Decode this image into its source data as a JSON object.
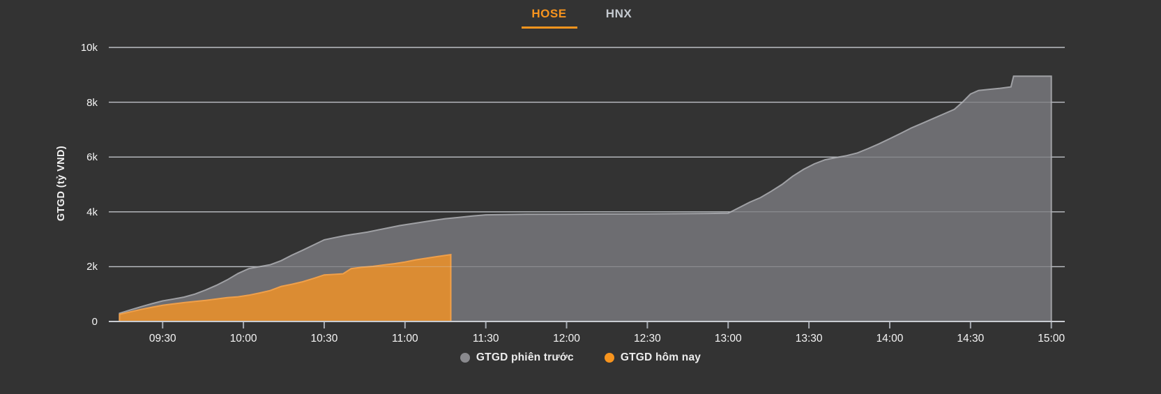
{
  "tabs": {
    "hose": "HOSE",
    "hnx": "HNX"
  },
  "colors": {
    "background": "#333333",
    "accent_orange": "#f7941e",
    "tab_inactive": "#c5cad0",
    "gridline": "#b5b8bd",
    "axis_line": "#c9ccd2",
    "tick_text": "#f5f5f5"
  },
  "chart_data": {
    "type": "area",
    "title": "",
    "ylabel": "GTGD (tỷ VND)",
    "xlabel": "",
    "ylim": [
      0,
      10000
    ],
    "grid": "horizontal",
    "legend_position": "bottom-center",
    "yticks": [
      {
        "v": 0,
        "label": "0"
      },
      {
        "v": 2000,
        "label": "2k"
      },
      {
        "v": 4000,
        "label": "4k"
      },
      {
        "v": 6000,
        "label": "6k"
      },
      {
        "v": 8000,
        "label": "8k"
      },
      {
        "v": 10000,
        "label": "10k"
      }
    ],
    "xticks": [
      {
        "t": "09:30",
        "label": "09:30"
      },
      {
        "t": "10:00",
        "label": "10:00"
      },
      {
        "t": "10:30",
        "label": "10:30"
      },
      {
        "t": "11:00",
        "label": "11:00"
      },
      {
        "t": "11:30",
        "label": "11:30"
      },
      {
        "t": "12:00",
        "label": "12:00"
      },
      {
        "t": "12:30",
        "label": "12:30"
      },
      {
        "t": "13:00",
        "label": "13:00"
      },
      {
        "t": "13:30",
        "label": "13:30"
      },
      {
        "t": "14:00",
        "label": "14:00"
      },
      {
        "t": "14:30",
        "label": "14:30"
      },
      {
        "t": "15:00",
        "label": "15:00"
      }
    ],
    "series": [
      {
        "name": "GTGD phiên trước",
        "fill": "#6d6d71",
        "stroke": "#a0a1a5",
        "points": [
          [
            "09:14",
            300
          ],
          [
            "09:18",
            420
          ],
          [
            "09:22",
            540
          ],
          [
            "09:26",
            650
          ],
          [
            "09:30",
            750
          ],
          [
            "09:34",
            820
          ],
          [
            "09:38",
            890
          ],
          [
            "09:42",
            1000
          ],
          [
            "09:46",
            1150
          ],
          [
            "09:50",
            1320
          ],
          [
            "09:54",
            1520
          ],
          [
            "09:58",
            1750
          ],
          [
            "10:02",
            1930
          ],
          [
            "10:06",
            2000
          ],
          [
            "10:10",
            2070
          ],
          [
            "10:14",
            2220
          ],
          [
            "10:18",
            2420
          ],
          [
            "10:22",
            2600
          ],
          [
            "10:26",
            2790
          ],
          [
            "10:30",
            2980
          ],
          [
            "10:34",
            3060
          ],
          [
            "10:38",
            3140
          ],
          [
            "10:42",
            3200
          ],
          [
            "10:46",
            3260
          ],
          [
            "10:50",
            3340
          ],
          [
            "10:54",
            3420
          ],
          [
            "10:58",
            3500
          ],
          [
            "11:02",
            3560
          ],
          [
            "11:06",
            3620
          ],
          [
            "11:10",
            3680
          ],
          [
            "11:15",
            3750
          ],
          [
            "11:20",
            3800
          ],
          [
            "11:25",
            3850
          ],
          [
            "11:30",
            3890
          ],
          [
            "11:45",
            3910
          ],
          [
            "12:00",
            3915
          ],
          [
            "12:15",
            3920
          ],
          [
            "12:30",
            3925
          ],
          [
            "12:45",
            3935
          ],
          [
            "13:00",
            3950
          ],
          [
            "13:04",
            4150
          ],
          [
            "13:08",
            4350
          ],
          [
            "13:12",
            4520
          ],
          [
            "13:16",
            4750
          ],
          [
            "13:20",
            5000
          ],
          [
            "13:24",
            5300
          ],
          [
            "13:28",
            5550
          ],
          [
            "13:32",
            5750
          ],
          [
            "13:36",
            5900
          ],
          [
            "13:40",
            5980
          ],
          [
            "13:44",
            6050
          ],
          [
            "13:48",
            6150
          ],
          [
            "13:52",
            6310
          ],
          [
            "13:56",
            6480
          ],
          [
            "14:00",
            6670
          ],
          [
            "14:04",
            6860
          ],
          [
            "14:08",
            7060
          ],
          [
            "14:12",
            7230
          ],
          [
            "14:16",
            7400
          ],
          [
            "14:20",
            7570
          ],
          [
            "14:24",
            7740
          ],
          [
            "14:27",
            8000
          ],
          [
            "14:30",
            8300
          ],
          [
            "14:33",
            8430
          ],
          [
            "14:37",
            8470
          ],
          [
            "14:41",
            8510
          ],
          [
            "14:45",
            8560
          ],
          [
            "14:46",
            8950
          ],
          [
            "15:00",
            8950
          ]
        ]
      },
      {
        "name": "GTGD hôm nay",
        "fill": "#db8c33",
        "stroke": "#f0a04a",
        "points": [
          [
            "09:14",
            260
          ],
          [
            "09:18",
            350
          ],
          [
            "09:22",
            440
          ],
          [
            "09:26",
            520
          ],
          [
            "09:30",
            590
          ],
          [
            "09:34",
            640
          ],
          [
            "09:38",
            690
          ],
          [
            "09:42",
            730
          ],
          [
            "09:46",
            770
          ],
          [
            "09:50",
            820
          ],
          [
            "09:54",
            870
          ],
          [
            "09:58",
            900
          ],
          [
            "10:02",
            960
          ],
          [
            "10:06",
            1040
          ],
          [
            "10:10",
            1130
          ],
          [
            "10:14",
            1280
          ],
          [
            "10:18",
            1360
          ],
          [
            "10:22",
            1450
          ],
          [
            "10:26",
            1570
          ],
          [
            "10:30",
            1700
          ],
          [
            "10:34",
            1720
          ],
          [
            "10:37",
            1740
          ],
          [
            "10:40",
            1930
          ],
          [
            "10:44",
            1980
          ],
          [
            "10:48",
            2010
          ],
          [
            "10:52",
            2060
          ],
          [
            "10:56",
            2110
          ],
          [
            "11:00",
            2170
          ],
          [
            "11:04",
            2250
          ],
          [
            "11:08",
            2310
          ],
          [
            "11:12",
            2370
          ],
          [
            "11:17",
            2440
          ]
        ]
      }
    ],
    "legend": [
      {
        "label": "GTGD phiên trước",
        "color": "#8a8a8e"
      },
      {
        "label": "GTGD hôm nay",
        "color": "#f7941e"
      }
    ]
  }
}
